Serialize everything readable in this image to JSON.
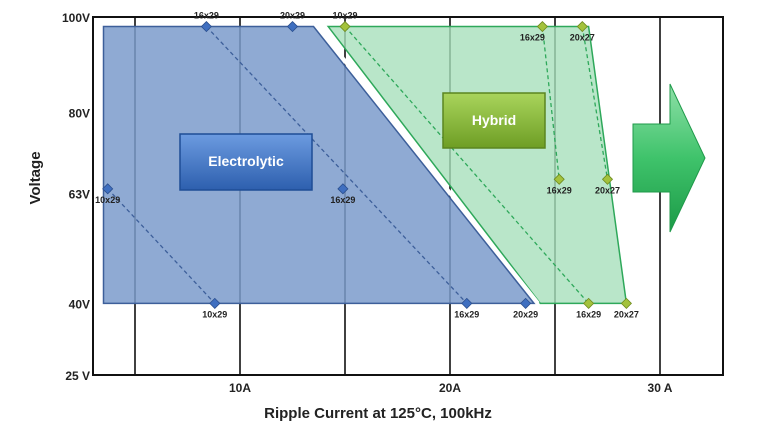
{
  "chart_data": {
    "type": "area",
    "xlabel": "Ripple Current at 125°C, 100kHz",
    "ylabel": "Voltage",
    "x_ticks": [
      {
        "value": 10,
        "label": "10A"
      },
      {
        "value": 20,
        "label": "20A"
      },
      {
        "value": 30,
        "label": "30 A"
      }
    ],
    "y_ticks": [
      {
        "value": 100,
        "label": "100V"
      },
      {
        "value": 80,
        "label": "80V"
      },
      {
        "value": 63,
        "label": "63V"
      },
      {
        "value": 40,
        "label": "40V"
      },
      {
        "value": 25,
        "label": "25 V"
      }
    ],
    "xlim": [
      3,
      33
    ],
    "ylim": [
      25,
      100
    ],
    "regions": [
      {
        "name": "Electrolytic",
        "fill": "#7b9bcb",
        "stroke": "#3d5f9a",
        "polygon": [
          [
            3.5,
            98
          ],
          [
            13.5,
            98
          ],
          [
            24,
            40
          ],
          [
            3.5,
            40
          ]
        ],
        "points": [
          {
            "x": 8.4,
            "y": 98,
            "label": "16x29",
            "label_pos": "above"
          },
          {
            "x": 12.5,
            "y": 98,
            "label": "20x29",
            "label_pos": "above"
          },
          {
            "x": 3.7,
            "y": 64,
            "label": "10x29",
            "label_pos": "below"
          },
          {
            "x": 14.9,
            "y": 64,
            "label": "16x29",
            "label_pos": "below"
          },
          {
            "x": 8.8,
            "y": 40,
            "label": "10x29",
            "label_pos": "below"
          },
          {
            "x": 20.8,
            "y": 40,
            "label": "16x29",
            "label_pos": "below"
          },
          {
            "x": 23.6,
            "y": 40,
            "label": "20x29",
            "label_pos": "below"
          }
        ],
        "lines": [
          [
            [
              8.4,
              98
            ],
            [
              20.8,
              40
            ]
          ],
          [
            [
              3.7,
              64
            ],
            [
              8.8,
              40
            ]
          ]
        ]
      },
      {
        "name": "Hybrid",
        "fill": "#a8e0bc",
        "stroke": "#2ea85a",
        "polygon": [
          [
            14.2,
            98
          ],
          [
            26.6,
            98
          ],
          [
            28.4,
            40
          ],
          [
            24.3,
            40
          ]
        ],
        "points": [
          {
            "x": 15.0,
            "y": 98,
            "label": "10x29",
            "label_pos": "above"
          },
          {
            "x": 24.4,
            "y": 98,
            "label": "16x29",
            "label_pos": "below-left"
          },
          {
            "x": 26.3,
            "y": 98,
            "label": "20x27",
            "label_pos": "below"
          },
          {
            "x": 25.2,
            "y": 66,
            "label": "16x29",
            "label_pos": "below"
          },
          {
            "x": 27.5,
            "y": 66,
            "label": "20x27",
            "label_pos": "below"
          },
          {
            "x": 26.6,
            "y": 40,
            "label": "16x29",
            "label_pos": "below"
          },
          {
            "x": 28.4,
            "y": 40,
            "label": "20x27",
            "label_pos": "below"
          }
        ],
        "lines": [
          [
            [
              15.0,
              98
            ],
            [
              26.6,
              40
            ]
          ],
          [
            [
              24.4,
              98
            ],
            [
              25.2,
              66
            ]
          ],
          [
            [
              26.3,
              98
            ],
            [
              27.5,
              66
            ]
          ]
        ]
      }
    ],
    "annotations": [
      "Electrolytic",
      "Hybrid"
    ],
    "grid": true
  },
  "colors": {
    "electrolytic_box": "#3a6fc4",
    "hybrid_box": "#8ab83a",
    "arrow": "#27b457"
  }
}
